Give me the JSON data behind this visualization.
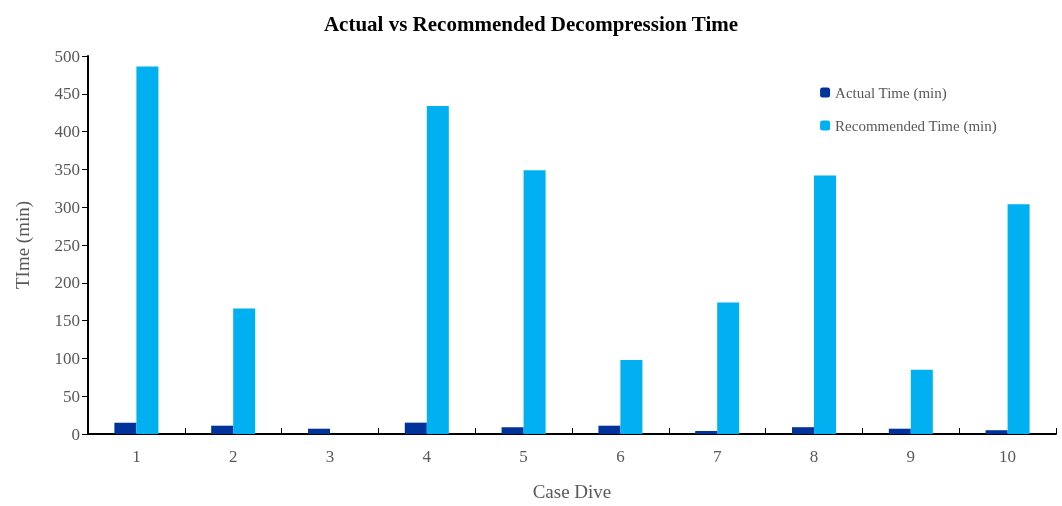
{
  "chart_data": {
    "type": "bar",
    "title": "Actual vs Recommended Decompression Time",
    "xlabel": "Case Dive",
    "ylabel": "TIme (min)",
    "categories": [
      "1",
      "2",
      "3",
      "4",
      "5",
      "6",
      "7",
      "8",
      "9",
      "10"
    ],
    "series": [
      {
        "name": "Actual Time (min)",
        "color": "#003399",
        "values": [
          15,
          11,
          7,
          15,
          9,
          11,
          4,
          9,
          7,
          5
        ]
      },
      {
        "name": "Recommended Time (min)",
        "color": "#00b0f0",
        "values": [
          486,
          166,
          0,
          434,
          349,
          98,
          174,
          342,
          85,
          304
        ]
      }
    ],
    "ylim": [
      0,
      500
    ],
    "yticks": [
      0,
      50,
      100,
      150,
      200,
      250,
      300,
      350,
      400,
      450,
      500
    ],
    "grid": false,
    "legend": "top right"
  }
}
